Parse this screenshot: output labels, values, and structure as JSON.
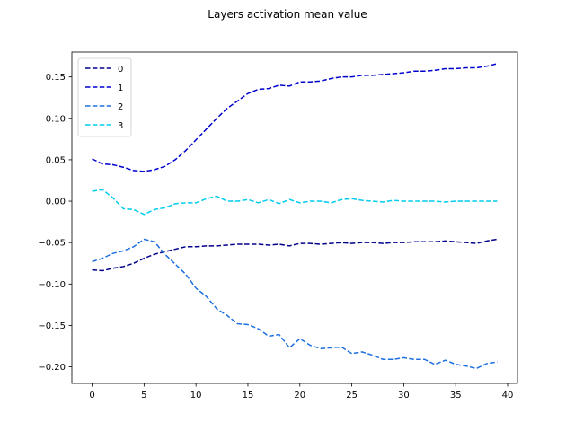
{
  "chart_data": {
    "type": "line",
    "title": "Layers activation mean value",
    "xlabel": "",
    "ylabel": "",
    "xlim": [
      -1.95,
      40.95
    ],
    "ylim": [
      -0.22,
      0.18
    ],
    "xticks": [
      0,
      5,
      10,
      15,
      20,
      25,
      30,
      35,
      40
    ],
    "yticks": [
      -0.2,
      -0.15,
      -0.1,
      -0.05,
      0.0,
      0.05,
      0.1,
      0.15
    ],
    "ytick_labels": [
      "−0.20",
      "−0.15",
      "−0.10",
      "−0.05",
      "0.00",
      "0.05",
      "0.10",
      "0.15"
    ],
    "grid": false,
    "legend": "upper-left",
    "x": [
      0,
      1,
      2,
      3,
      4,
      5,
      6,
      7,
      8,
      9,
      10,
      11,
      12,
      13,
      14,
      15,
      16,
      17,
      18,
      19,
      20,
      21,
      22,
      23,
      24,
      25,
      26,
      27,
      28,
      29,
      30,
      31,
      32,
      33,
      34,
      35,
      36,
      37,
      38,
      39
    ],
    "series": [
      {
        "name": "0",
        "color": "#00008b",
        "values": [
          -0.083,
          -0.084,
          -0.081,
          -0.079,
          -0.075,
          -0.069,
          -0.064,
          -0.061,
          -0.058,
          -0.055,
          -0.055,
          -0.054,
          -0.054,
          -0.053,
          -0.052,
          -0.052,
          -0.052,
          -0.053,
          -0.052,
          -0.054,
          -0.051,
          -0.051,
          -0.052,
          -0.051,
          -0.05,
          -0.051,
          -0.05,
          -0.05,
          -0.051,
          -0.05,
          -0.05,
          -0.049,
          -0.049,
          -0.049,
          -0.048,
          -0.049,
          -0.05,
          -0.051,
          -0.048,
          -0.046
        ]
      },
      {
        "name": "1",
        "color": "#0000cd",
        "values": [
          0.051,
          0.045,
          0.044,
          0.041,
          0.037,
          0.036,
          0.038,
          0.042,
          0.05,
          0.061,
          0.074,
          0.087,
          0.1,
          0.112,
          0.121,
          0.13,
          0.135,
          0.136,
          0.14,
          0.139,
          0.144,
          0.144,
          0.145,
          0.148,
          0.15,
          0.15,
          0.152,
          0.152,
          0.153,
          0.154,
          0.155,
          0.157,
          0.157,
          0.158,
          0.16,
          0.16,
          0.161,
          0.161,
          0.163,
          0.166
        ]
      },
      {
        "name": "2",
        "color": "#1e6fe0",
        "values": [
          -0.073,
          -0.069,
          -0.063,
          -0.06,
          -0.055,
          -0.046,
          -0.049,
          -0.064,
          -0.076,
          -0.088,
          -0.105,
          -0.115,
          -0.13,
          -0.138,
          -0.148,
          -0.149,
          -0.154,
          -0.163,
          -0.161,
          -0.177,
          -0.166,
          -0.174,
          -0.178,
          -0.177,
          -0.176,
          -0.184,
          -0.182,
          -0.186,
          -0.191,
          -0.191,
          -0.189,
          -0.191,
          -0.191,
          -0.197,
          -0.192,
          -0.197,
          -0.199,
          -0.202,
          -0.196,
          -0.194
        ]
      },
      {
        "name": "3",
        "color": "#00ccee",
        "values": [
          0.012,
          0.014,
          0.004,
          -0.009,
          -0.01,
          -0.016,
          -0.01,
          -0.008,
          -0.003,
          -0.002,
          -0.002,
          0.003,
          0.006,
          0.0,
          0.0,
          0.002,
          -0.002,
          0.002,
          -0.003,
          0.002,
          -0.002,
          0.0,
          0.0,
          -0.002,
          0.002,
          0.003,
          0.001,
          0.0,
          -0.001,
          0.001,
          0.0,
          0.0,
          0.0,
          0.0,
          -0.001,
          0.0,
          0.0,
          0.0,
          0.0,
          0.0
        ]
      }
    ]
  }
}
